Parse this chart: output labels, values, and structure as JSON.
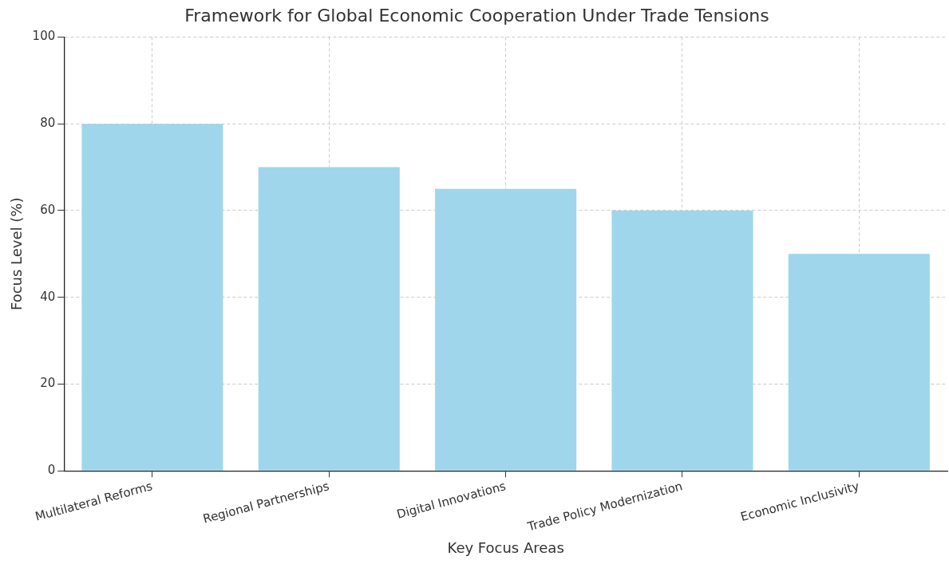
{
  "chart_data": {
    "type": "bar",
    "title": "Framework for Global Economic Cooperation Under Trade Tensions",
    "xlabel": "Key Focus Areas",
    "ylabel": "Focus Level (%)",
    "categories": [
      "Multilateral Reforms",
      "Regional Partnerships",
      "Digital Innovations",
      "Trade Policy Modernization",
      "Economic Inclusivity"
    ],
    "values": [
      80,
      70,
      65,
      60,
      50
    ],
    "color": "#9fd6eb",
    "ylim": [
      0,
      100
    ],
    "yticks": [
      0,
      20,
      40,
      60,
      80,
      100
    ],
    "grid": true
  }
}
